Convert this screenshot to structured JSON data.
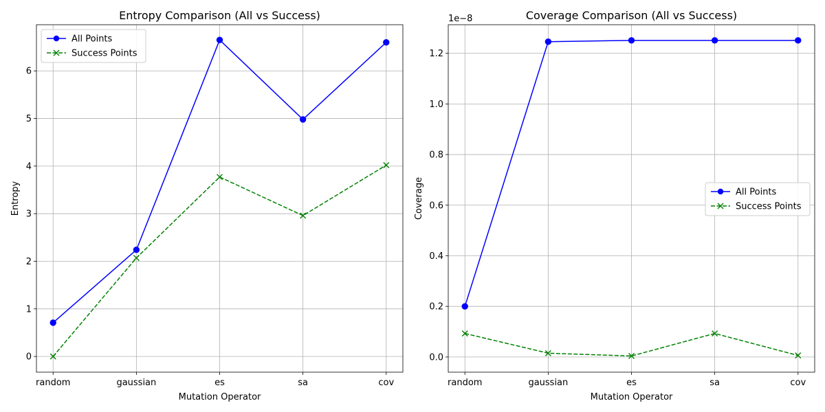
{
  "chart_data": [
    {
      "type": "line",
      "title": "Entropy Comparison (All vs Success)",
      "xlabel": "Mutation Operator",
      "ylabel": "Entropy",
      "categories": [
        "random",
        "gaussian",
        "es",
        "sa",
        "cov"
      ],
      "ylim": [
        -0.33,
        6.97
      ],
      "yticks": [
        0,
        1,
        2,
        3,
        4,
        5,
        6
      ],
      "ytick_labels": [
        "0",
        "1",
        "2",
        "3",
        "4",
        "5",
        "6"
      ],
      "offset_text": "",
      "grid": true,
      "legend_position": "upper-left",
      "series": [
        {
          "name": "All Points",
          "values": [
            0.71,
            2.24,
            6.65,
            4.98,
            6.6
          ],
          "color": "#0000ff",
          "marker": "circle",
          "linestyle": "solid"
        },
        {
          "name": "Success Points",
          "values": [
            0.0,
            2.07,
            3.77,
            2.96,
            4.02
          ],
          "color": "#008000",
          "marker": "x",
          "linestyle": "dashed"
        }
      ]
    },
    {
      "type": "line",
      "title": "Coverage Comparison (All vs Success)",
      "xlabel": "Mutation Operator",
      "ylabel": "Coverage",
      "categories": [
        "random",
        "gaussian",
        "es",
        "sa",
        "cov"
      ],
      "ylim": [
        -0.06,
        1.313
      ],
      "yticks": [
        0.0,
        0.2,
        0.4,
        0.6,
        0.8,
        1.0,
        1.2
      ],
      "ytick_labels": [
        "0.0",
        "0.2",
        "0.4",
        "0.6",
        "0.8",
        "1.0",
        "1.2"
      ],
      "offset_text": "1e−8",
      "grid": true,
      "legend_position": "center-right",
      "series": [
        {
          "name": "All Points",
          "values": [
            0.2,
            1.246,
            1.251,
            1.251,
            1.251
          ],
          "color": "#0000ff",
          "marker": "circle",
          "linestyle": "solid"
        },
        {
          "name": "Success Points",
          "values": [
            0.093,
            0.015,
            0.004,
            0.093,
            0.006
          ],
          "color": "#008000",
          "marker": "x",
          "linestyle": "dashed"
        }
      ]
    }
  ]
}
